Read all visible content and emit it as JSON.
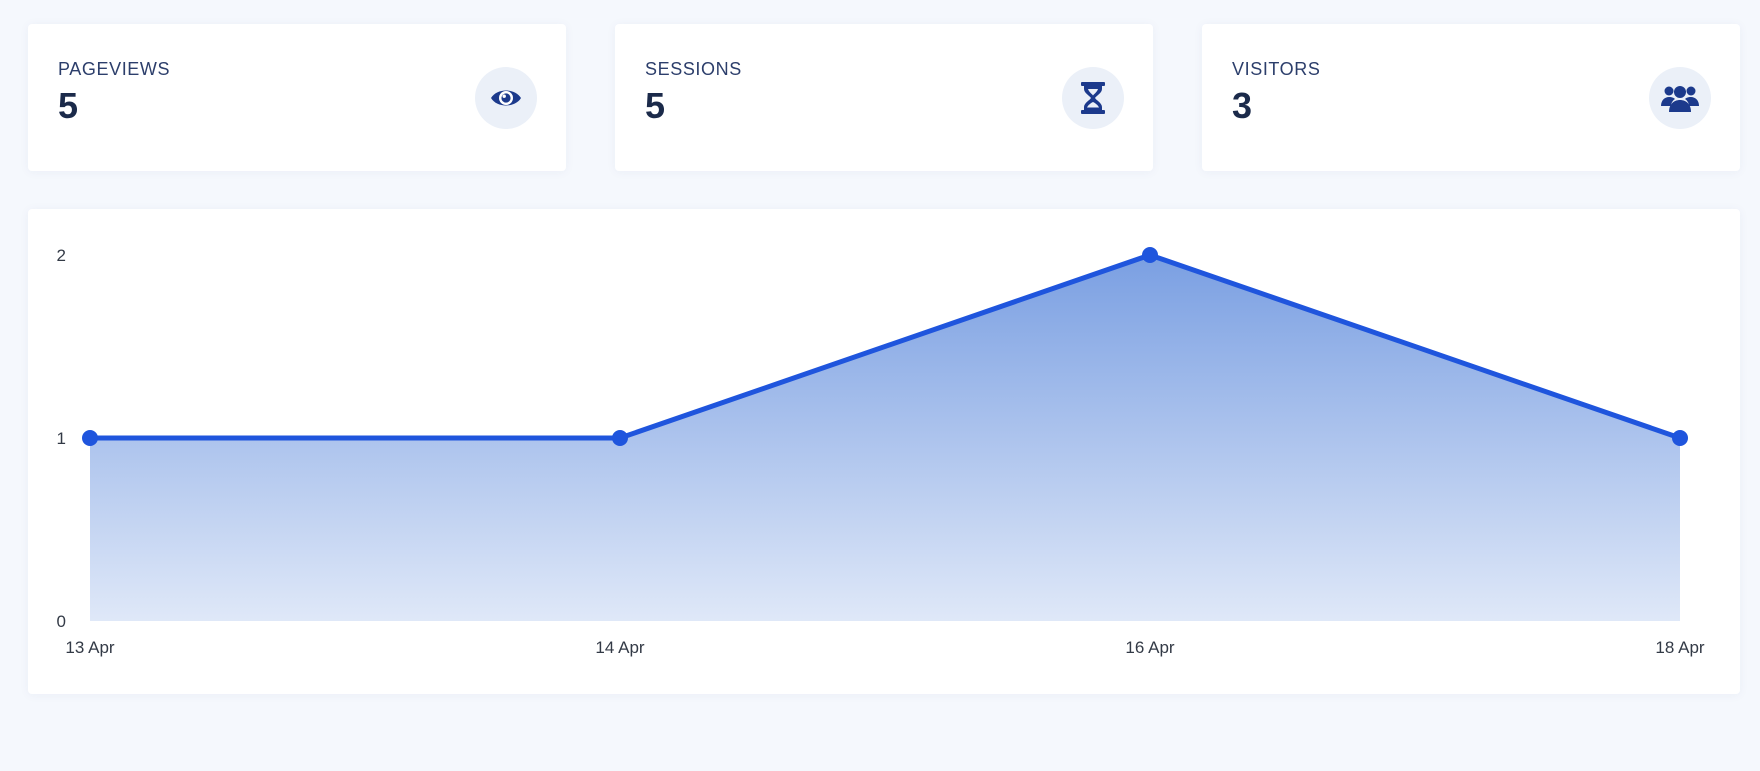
{
  "stats": [
    {
      "label": "PAGEVIEWS",
      "value": "5",
      "icon": "eye-icon"
    },
    {
      "label": "SESSIONS",
      "value": "5",
      "icon": "hourglass-icon"
    },
    {
      "label": "VISITORS",
      "value": "3",
      "icon": "users-icon"
    }
  ],
  "colors": {
    "accent": "#1f55dd",
    "icon": "#1c3a8c",
    "icon_bg": "#ebf0f8",
    "page_bg": "#f5f8fd",
    "card_bg": "#ffffff",
    "text_dark": "#1b2a4a",
    "text_label": "#2c3e6b"
  },
  "chart_data": {
    "type": "area",
    "x": [
      "13 Apr",
      "14 Apr",
      "16 Apr",
      "18 Apr"
    ],
    "series": [
      {
        "values": [
          1,
          1,
          2,
          1
        ]
      }
    ],
    "ylim": [
      0,
      2
    ],
    "yticks": [
      "0",
      "1",
      "2"
    ],
    "grid": false,
    "legend": "none"
  }
}
